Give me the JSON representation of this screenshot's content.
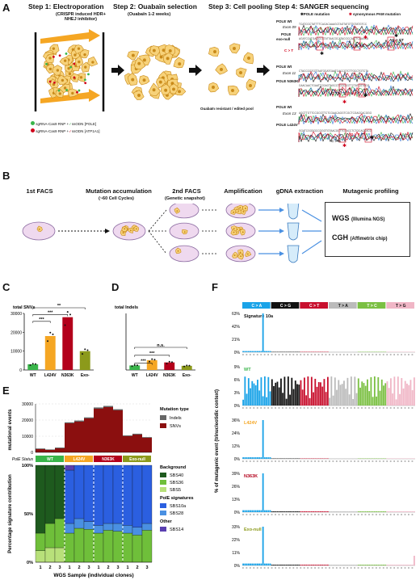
{
  "panelA": {
    "letter": "A",
    "step1_title": "Step 1: Electroporation",
    "step1_sub": "(CRISPR induced HDR+\nNHEJ inhibitor)",
    "step2_title": "Step 2: Ouabaïn selection",
    "step2_sub": "(Ouabaïn 1-2 weeks)",
    "step3_title": "Step 3: Cell pooling",
    "step3_note": "Ouabaïn resistant / edited pool",
    "step4_title": "Step 4: SANGER sequencing",
    "legend_pole": "POLE mutation",
    "legend_pam": "synonymous PAM mutation",
    "rnp1_a": "sgRNA-Cas9 RNP +",
    "rnp1_b": "ssODN [POLE]",
    "rnp2_a": "sgRNA-Cas9 RNP +",
    "rnp2_b": "ssODN [ATP1A1]",
    "seq": [
      {
        "wt": "POLE Wt",
        "exon": "Exon 09",
        "mut": "POLE",
        "mut2": "exo-null",
        "calls": [
          "C > T",
          "A > C",
          "AG > CT"
        ]
      },
      {
        "wt": "POLE Wt",
        "exon": "Exon 11",
        "mut": "POLE N363K",
        "calls": [
          "C > A",
          "G > C"
        ]
      },
      {
        "wt": "POLE Wt",
        "exon": "Exon 13",
        "mut": "POLE L424V",
        "calls": [
          "C > G",
          "G > T"
        ]
      }
    ],
    "colors": {
      "orange": "#f5a623",
      "green": "#39b54a",
      "red": "#d0021b",
      "blue": "#2f6fd6"
    }
  },
  "panelB": {
    "letter": "B",
    "steps": [
      "1st FACS",
      "Mutation accumulation",
      "2nd FACS",
      "Amplification",
      "gDNA extraction",
      "Mutagenic profiling"
    ],
    "step2_sub": "(~60 Cell Cycles)",
    "step3_sub": "(Genetic snapshot)",
    "wgs": "WGS",
    "wgs_sub": "(Illumina NGS)",
    "cgh": "CGH",
    "cgh_sub": "(Affimetrix chip)"
  },
  "panelC": {
    "letter": "C",
    "chart_data": {
      "type": "bar",
      "title": "total SNVs",
      "categories": [
        "WT",
        "L424V",
        "N363K",
        "Exo-"
      ],
      "values": [
        3000,
        18000,
        28000,
        10000
      ],
      "ylim": [
        0,
        30000
      ],
      "yticks": [
        "0",
        "10000",
        "20000",
        "30000"
      ],
      "colors": [
        "#39b54a",
        "#f5a623",
        "#b3001b",
        "#8c9a1b"
      ],
      "sig": [
        "***",
        "***",
        "**"
      ]
    }
  },
  "panelD": {
    "letter": "D",
    "chart_data": {
      "type": "bar",
      "title": "total Indels",
      "categories": [
        "WT",
        "L424V",
        "N363K",
        "Exo-"
      ],
      "values": [
        120,
        260,
        200,
        110
      ],
      "ylim": [
        0,
        1500
      ],
      "colors": [
        "#39b54a",
        "#f5a623",
        "#b3001b",
        "#8c9a1b"
      ],
      "sig": [
        "***",
        "***",
        "n.s."
      ]
    }
  },
  "panelE": {
    "letter": "E",
    "ylabel_top": "mutational events",
    "yticks_top": [
      "30000",
      "20000",
      "10000",
      "0"
    ],
    "mutation_type_title": "Mutation type",
    "legend_types": [
      {
        "name": "Indels",
        "color": "#666666"
      },
      {
        "name": "SNVs",
        "color": "#8b0f0f"
      }
    ],
    "pole_status_label": "PolE Status",
    "status": [
      {
        "name": "WT",
        "color": "#39b54a"
      },
      {
        "name": "L424V",
        "color": "#f5a623"
      },
      {
        "name": "N363K",
        "color": "#b3001b"
      },
      {
        "name": "Exo-null",
        "color": "#8c9a1b"
      }
    ],
    "ylabel_bottom": "Percentage signature contribution",
    "yticks_bottom": [
      "100%",
      "50%",
      "0%"
    ],
    "background_title": "Background",
    "background": [
      {
        "name": "SBS40",
        "color": "#1e5a1e"
      },
      {
        "name": "SBS36",
        "color": "#6fbf3a"
      },
      {
        "name": "SBS5",
        "color": "#b8e07a"
      }
    ],
    "pole_sig_title": "PolE signatures",
    "pole_sigs": [
      {
        "name": "SBS10a",
        "color": "#2b5fe0"
      },
      {
        "name": "SBS28",
        "color": "#4a90e2"
      }
    ],
    "other_title": "Other",
    "other": [
      {
        "name": "SBS14",
        "color": "#5a3fb0"
      }
    ],
    "xlabel": "WGS Sample (individual clones)",
    "clone_labels": [
      "1",
      "2",
      "3",
      "1",
      "2",
      "3",
      "1",
      "2",
      "3",
      "1",
      "2",
      "3"
    ],
    "chart_data": {
      "type": "bar",
      "snvs": [
        2000,
        1500,
        2500,
        18000,
        19000,
        21000,
        27000,
        28000,
        26000,
        10000,
        11000,
        9000
      ],
      "indels": [
        400,
        300,
        500,
        600,
        700,
        650,
        800,
        750,
        700,
        500,
        550,
        450
      ],
      "sbs40": [
        0.7,
        0.6,
        0.55,
        0,
        0,
        0,
        0,
        0,
        0,
        0,
        0,
        0
      ],
      "sbs36": [
        0.18,
        0.25,
        0.3,
        0.3,
        0.35,
        0.34,
        0.3,
        0.33,
        0.32,
        0.3,
        0.28,
        0.33
      ],
      "sbs5": [
        0.12,
        0.15,
        0.15,
        0,
        0,
        0,
        0,
        0,
        0,
        0,
        0,
        0
      ],
      "sbs10a": [
        0,
        0,
        0,
        0.55,
        0.55,
        0.58,
        0.62,
        0.6,
        0.6,
        0.62,
        0.64,
        0.6
      ],
      "sbs28": [
        0,
        0,
        0,
        0.1,
        0.1,
        0.08,
        0.08,
        0.07,
        0.08,
        0.08,
        0.08,
        0.07
      ],
      "sbs14": [
        0,
        0,
        0,
        0.05,
        0,
        0,
        0,
        0,
        0,
        0,
        0,
        0
      ]
    }
  },
  "panelF": {
    "letter": "F",
    "ylabel": "% of mutagenic event (trinucleotidic context)",
    "types": [
      {
        "name": "C > A",
        "color": "#1aa3e8"
      },
      {
        "name": "C > G",
        "color": "#111111"
      },
      {
        "name": "C > T",
        "color": "#c8102e"
      },
      {
        "name": "T > A",
        "color": "#bbbbbb"
      },
      {
        "name": "T > C",
        "color": "#7bc043"
      },
      {
        "name": "T > G",
        "color": "#f0b6c6"
      }
    ],
    "profiles": [
      {
        "name": "Signature 10a",
        "color": "#111111",
        "yticks": [
          "63%",
          "42%",
          "21%",
          "0%"
        ]
      },
      {
        "name": "WT",
        "color": "#39b54a",
        "yticks": [
          "9%",
          "6%",
          "3%",
          "0%"
        ]
      },
      {
        "name": "L424V",
        "color": "#f5a623",
        "yticks": [
          "36%",
          "24%",
          "12%",
          "0%"
        ]
      },
      {
        "name": "N363K",
        "color": "#b3001b",
        "yticks": [
          "39%",
          "26%",
          "13%",
          "0%"
        ]
      },
      {
        "name": "Exo-null",
        "color": "#8c9a1b",
        "yticks": [
          "33%",
          "22%",
          "11%",
          "0%"
        ]
      }
    ]
  }
}
